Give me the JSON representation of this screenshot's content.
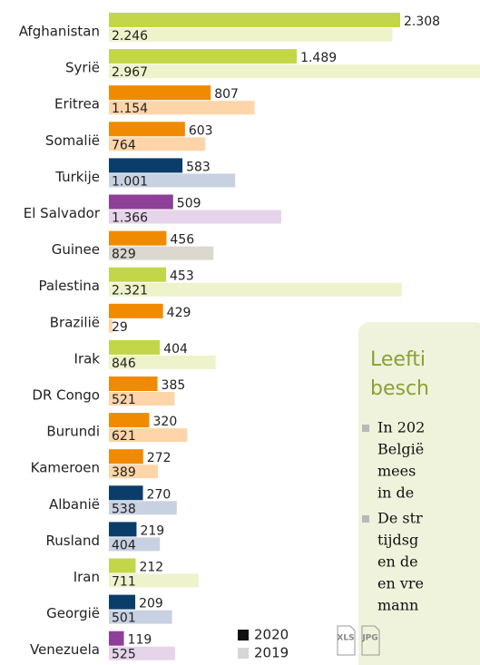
{
  "chart_data": {
    "type": "bar",
    "orientation": "horizontal",
    "categories": [
      "Afghanistan",
      "Syrië",
      "Eritrea",
      "Somalië",
      "Turkije",
      "El Salvador",
      "Guinee",
      "Palestina",
      "Brazilië",
      "Irak",
      "DR Congo",
      "Burundi",
      "Kameroen",
      "Albanië",
      "Rusland",
      "Iran",
      "Georgië",
      "Venezuela"
    ],
    "series": [
      {
        "name": "2020",
        "color": "#111111",
        "bar_colors": [
          "#c3d64a",
          "#c3d64a",
          "#f08a00",
          "#f08a00",
          "#0b3d6b",
          "#8e3f97",
          "#f08a00",
          "#c3d64a",
          "#f08a00",
          "#c3d64a",
          "#f08a00",
          "#f08a00",
          "#f08a00",
          "#0b3d6b",
          "#0b3d6b",
          "#c3d64a",
          "#0b3d6b",
          "#8e3f97"
        ],
        "values": [
          2308,
          1489,
          807,
          603,
          583,
          509,
          456,
          453,
          429,
          404,
          385,
          320,
          272,
          270,
          219,
          212,
          209,
          119
        ],
        "value_labels": [
          "2.308",
          "1.489",
          "807",
          "603",
          "583",
          "509",
          "456",
          "453",
          "429",
          "404",
          "385",
          "320",
          "272",
          "270",
          "219",
          "212",
          "209",
          "119"
        ]
      },
      {
        "name": "2019",
        "color": "#d6d6d6",
        "bar_colors": [
          "#eef3cc",
          "#eef3cc",
          "#fdd5a8",
          "#fdd5a8",
          "#c8d1e2",
          "#e6d4ea",
          "#dcd8d0",
          "#eef3cc",
          "#fdd5a8",
          "#eef3cc",
          "#fdd5a8",
          "#fdd5a8",
          "#fdd5a8",
          "#c8d1e2",
          "#c8d1e2",
          "#eef3cc",
          "#c8d1e2",
          "#e6d4ea"
        ],
        "values": [
          2246,
          2967,
          1154,
          764,
          1001,
          1366,
          829,
          2321,
          29,
          846,
          521,
          621,
          389,
          538,
          404,
          711,
          501,
          525
        ],
        "value_labels": [
          "2.246",
          "2.967",
          "1.154",
          "764",
          "1.001",
          "1.366",
          "829",
          "2.321",
          "29",
          "846",
          "521",
          "621",
          "389",
          "538",
          "404",
          "711",
          "501",
          "525"
        ]
      }
    ],
    "xlim": [
      0,
      3000
    ]
  },
  "downloads": [
    "XLS",
    "JPG"
  ],
  "sidebar": {
    "title_lines": [
      "Leefti",
      "besch"
    ],
    "bullets": [
      [
        "In 202",
        "België",
        "mees",
        "in de"
      ],
      [
        "De str",
        "tijdsg",
        "en de",
        "en vre",
        "mann"
      ]
    ]
  }
}
